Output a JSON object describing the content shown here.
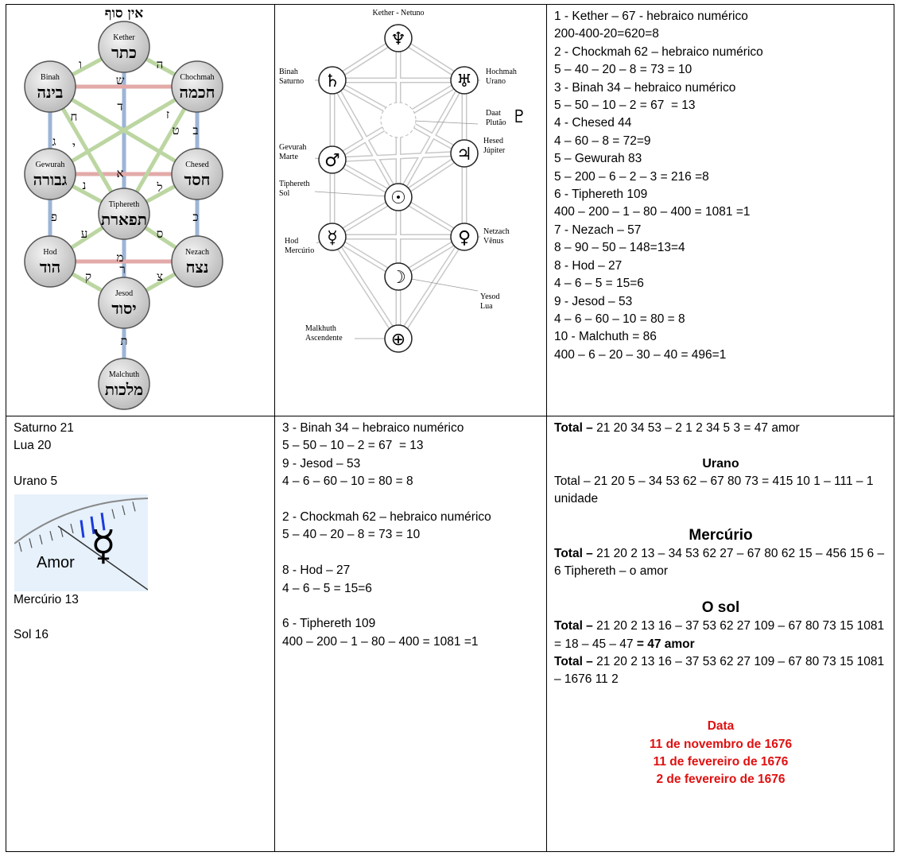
{
  "tree_of_life": {
    "top": "אין סוף",
    "nodes": [
      {
        "name": "Kether",
        "hebrew": "כתר"
      },
      {
        "name": "Binah",
        "hebrew": "בינה"
      },
      {
        "name": "Chochmah",
        "hebrew": "חכמה"
      },
      {
        "name": "Gewurah",
        "hebrew": "גבורה"
      },
      {
        "name": "Chesed",
        "hebrew": "חסד"
      },
      {
        "name": "Tiphereth",
        "hebrew": "תפארת"
      },
      {
        "name": "Hod",
        "hebrew": "הוד"
      },
      {
        "name": "Nezach",
        "hebrew": "נצח"
      },
      {
        "name": "Jesod",
        "hebrew": "יסוד"
      },
      {
        "name": "Malchuth",
        "hebrew": "מלכות"
      }
    ],
    "paths": [
      "ה",
      "ו",
      "ש",
      "ד",
      "ח",
      "ז",
      "ג",
      "י",
      "ב",
      "ט",
      "א",
      "נ",
      "ל",
      "פ",
      "כ",
      "ע",
      "ס",
      "מ",
      "ר",
      "ק",
      "צ",
      "ת"
    ]
  },
  "planetary_tree": {
    "nodes": [
      {
        "name": "Kether - Netuno",
        "symbol": "♆"
      },
      {
        "name": "Binah",
        "planet": "Saturno",
        "symbol": "♄"
      },
      {
        "name": "Hochmah",
        "planet": "Urano",
        "symbol": "♅"
      },
      {
        "name": "Daat",
        "planet": "Plutão",
        "symbol": "♇"
      },
      {
        "name": "Gevurah",
        "planet": "Marte",
        "symbol": "♂"
      },
      {
        "name": "Hesed",
        "planet": "Júpiter",
        "symbol": "♃"
      },
      {
        "name": "Tiphereth",
        "planet": "Sol",
        "symbol": "☉"
      },
      {
        "name": "Hod",
        "planet": "Mercúrio",
        "symbol": "☿"
      },
      {
        "name": "Netzach",
        "planet": "Vênus",
        "symbol": "♀"
      },
      {
        "name": "Yesod",
        "planet": "Lua",
        "symbol": "☽"
      },
      {
        "name": "Malkhuth",
        "planet": "Ascendente",
        "symbol": "⊕"
      }
    ]
  },
  "correspondences": [
    "1 - Kether – 67 - hebraico numérico",
    "200-400-20=620=8",
    "2 - Chockmah 62 – hebraico numérico",
    "5 – 40 – 20 – 8 = 73 = 10",
    "3 - Binah 34 – hebraico numérico",
    "5 – 50 – 10 – 2 = 67  = 13",
    "4 - Chesed 44",
    "4 – 60 – 8 = 72=9",
    "5 – Gewurah 83",
    "5 – 200 – 6 – 2 – 3 = 216 =8",
    "6 - Tiphereth 109",
    "400 – 200 – 1 – 80 – 400 = 1081 =1",
    "7 - Nezach – 57",
    "8 – 90 – 50 – 148=13=4",
    "8 - Hod – 27",
    "4 – 6 – 5 = 15=6",
    "9 - Jesod – 53",
    "4 – 6 – 60 – 10 = 80 = 8",
    "10 - Malchuth = 86",
    "400 – 6 – 20 – 30 – 40 = 496=1"
  ],
  "planet_values": [
    "Saturno 21",
    "Lua 20",
    "Urano 5",
    "Mercúrio 13",
    "Sol 16"
  ],
  "amor_image": {
    "label": "Amor",
    "symbol": "☿"
  },
  "selected_sefirot": [
    [
      "3 - Binah 34 – hebraico numérico",
      "5 – 50 – 10 – 2 = 67  = 13",
      "9 - Jesod – 53",
      "4 – 6 – 60 – 10 = 80 = 8"
    ],
    [
      "2 - Chockmah 62 – hebraico numérico",
      "5 – 40 – 20 – 8 = 73 = 10"
    ],
    [
      "8 - Hod – 27",
      "4 – 6 – 5 = 15=6"
    ],
    [
      "6 - Tiphereth 109",
      "400 – 200 – 1 – 80 – 400 = 1081 =1"
    ]
  ],
  "totals": [
    {
      "paragraphs": [
        [
          {
            "text": "Total –",
            "bold": true
          },
          {
            "text": " 21 20 34 53 – 2 1 2 34 5 3 = 47 amor"
          }
        ]
      ]
    },
    {
      "heading": "Urano",
      "paragraphs": [
        [
          {
            "text": "Total – 21 20 5 – 34 53 62 – 67 80 73 = 415 10 1 – 111 – 1 unidade"
          }
        ]
      ]
    },
    {
      "heading": "Mercúrio",
      "paragraphs": [
        [
          {
            "text": "Total –",
            "bold": true
          },
          {
            "text": " 21 20 2 13 – 34 53 62 27 – 67 80 62 15 – 456 15 6 – 6 Tiphereth – o amor"
          }
        ]
      ]
    },
    {
      "heading": "O sol",
      "paragraphs": [
        [
          {
            "text": "Total –",
            "bold": true
          },
          {
            "text": " 21 20 2 13 16 – 37 53 62 27 109 – 67 80 73 15 1081 = 18 – 45 – 47 "
          },
          {
            "text": "= 47 amor",
            "bold": true
          }
        ],
        [
          {
            "text": "Total –",
            "bold": true
          },
          {
            "text": " 21 20 2 13 16 – 37 53 62 27 109 – 67 80 73 15 1081 – 1676 11 2"
          }
        ]
      ]
    }
  ],
  "date": [
    "Data",
    "11 de novembro de 1676",
    "11 de fevereiro de 1676",
    "2 de fevereiro de 1676"
  ]
}
